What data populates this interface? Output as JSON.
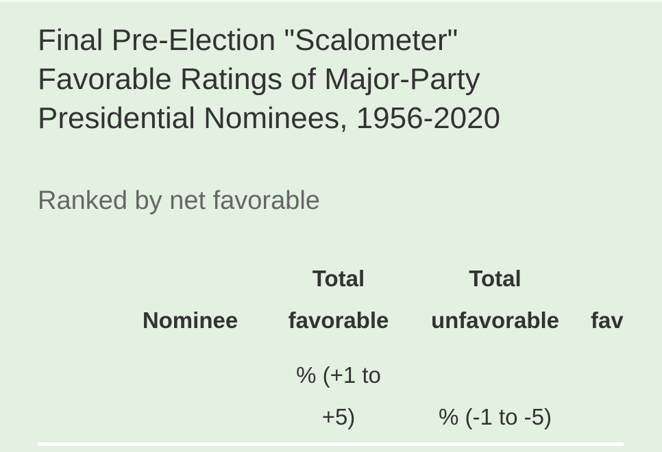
{
  "title": "Final Pre-Election \"Scalometer\" Favorable Ratings of Major-Party Presidential Nominees, 1956-2020",
  "subtitle": "Ranked by net favorable",
  "table": {
    "headers": [
      "Nominee",
      "Total favorable",
      "Total unfavorable",
      "fav"
    ],
    "units": [
      "% (+1 to +5)",
      "% (-1 to -5)"
    ]
  }
}
